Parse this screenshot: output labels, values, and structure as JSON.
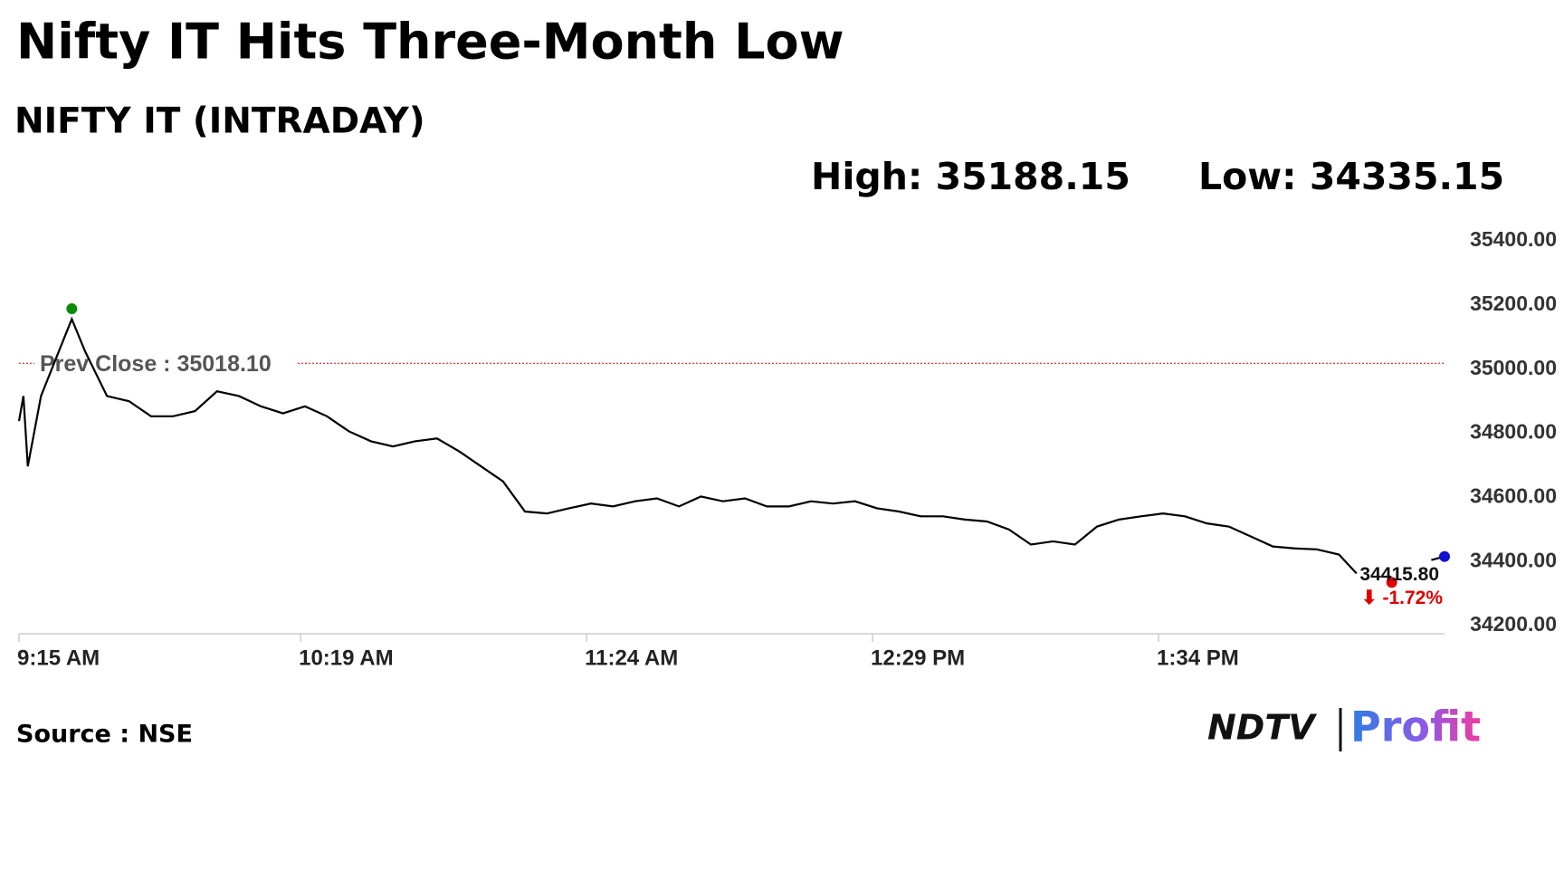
{
  "title": "Nifty IT Hits Three-Month Low",
  "source": "Source : NSE",
  "logo": {
    "brand": "NDTV",
    "product": "Profit"
  },
  "chart_data": {
    "type": "line",
    "title": "NIFTY IT (INTRADAY)",
    "stats": [
      {
        "value": 35188.15,
        "label": "High: 35188.15"
      },
      {
        "value": 34335.15,
        "label": "Low: 34335.15"
      }
    ],
    "x": [
      "09:15",
      "09:16",
      "09:17",
      "09:20",
      "09:25",
      "09:27",
      "09:30",
      "09:35",
      "09:40",
      "09:45",
      "09:50",
      "09:55",
      "10:00",
      "10:05",
      "10:10",
      "10:15",
      "10:20",
      "10:25",
      "10:30",
      "10:35",
      "10:40",
      "10:45",
      "10:50",
      "10:55",
      "11:00",
      "11:05",
      "11:10",
      "11:15",
      "11:20",
      "11:25",
      "11:30",
      "11:35",
      "11:40",
      "11:45",
      "11:50",
      "11:55",
      "12:00",
      "12:05",
      "12:10",
      "12:15",
      "12:20",
      "12:25",
      "12:30",
      "12:35",
      "12:40",
      "12:45",
      "12:50",
      "12:55",
      "13:00",
      "13:05",
      "13:10",
      "13:15",
      "13:20",
      "13:25",
      "13:30",
      "13:35",
      "13:40",
      "13:45",
      "13:50",
      "13:55",
      "14:00",
      "14:05",
      "14:10",
      "14:15",
      "14:19",
      "14:30",
      "14:36",
      "14:39"
    ],
    "series": [
      {
        "name": "NIFTY IT",
        "color": "#000000",
        "values": [
          34838,
          34916,
          34697,
          34916,
          35088,
          35156,
          35056,
          34916,
          34900,
          34853,
          34853,
          34869,
          34931,
          34916,
          34884,
          34862,
          34884,
          34853,
          34806,
          34775,
          34759,
          34775,
          34784,
          34744,
          34697,
          34650,
          34556,
          34550,
          34566,
          34581,
          34572,
          34588,
          34597,
          34572,
          34603,
          34588,
          34597,
          34572,
          34572,
          34588,
          34581,
          34588,
          34566,
          34556,
          34541,
          34541,
          34531,
          34525,
          34500,
          34453,
          34463,
          34453,
          34509,
          34531,
          34541,
          34550,
          34541,
          34519,
          34509,
          34478,
          34447,
          34441,
          34438,
          34422,
          34363,
          null,
          34405,
          34415.8
        ]
      }
    ],
    "xlim": [
      "09:15",
      "14:39"
    ],
    "xticks": [
      {
        "value": "09:15",
        "label": "9:15 AM"
      },
      {
        "value": "10:19",
        "label": "10:19 AM"
      },
      {
        "value": "11:24",
        "label": "11:24 AM"
      },
      {
        "value": "12:29",
        "label": "12:29 PM"
      },
      {
        "value": "13:34",
        "label": "1:34 PM"
      }
    ],
    "ylim": [
      34175,
      35400
    ],
    "yticks": [
      {
        "value": 35400,
        "label": "35400.00"
      },
      {
        "value": 35200,
        "label": "35200.00"
      },
      {
        "value": 35000,
        "label": "35000.00"
      },
      {
        "value": 34800,
        "label": "34800.00"
      },
      {
        "value": 34600,
        "label": "34600.00"
      },
      {
        "value": 34400,
        "label": "34400.00"
      },
      {
        "value": 34200,
        "label": "34200.00"
      }
    ],
    "prev_close": {
      "value": 35018.1,
      "label": "Prev Close : 35018.10",
      "color": "#d62020"
    },
    "high_marker": {
      "x": "09:27",
      "value": 35188.15,
      "color": "#0a8a0a"
    },
    "low_marker": {
      "x": "14:27",
      "value": 34335.15,
      "color": "#e00000"
    },
    "last": {
      "x": "14:39",
      "value": 34415.8,
      "label": "34415.80",
      "color": "#1010d0"
    },
    "change": {
      "value": -1.72,
      "label": "⬇ -1.72%",
      "color": "#e00000"
    }
  }
}
